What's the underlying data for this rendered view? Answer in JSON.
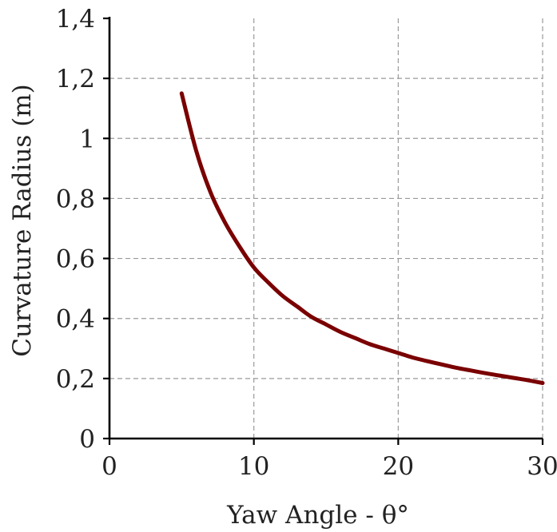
{
  "chart_data": {
    "type": "line",
    "xlabel": "Yaw Angle - θ°",
    "ylabel": "Curvature Radius (m)",
    "xlim": [
      0,
      30
    ],
    "ylim": [
      0,
      1.4
    ],
    "x_ticks": [
      0,
      10,
      20,
      30
    ],
    "x_tick_labels": [
      "0",
      "10",
      "20",
      "30"
    ],
    "y_ticks": [
      0,
      0.2,
      0.4,
      0.6,
      0.8,
      1.0,
      1.2,
      1.4
    ],
    "y_tick_labels": [
      "0",
      "0,2",
      "0,4",
      "0,6",
      "0,8",
      "1",
      "1,2",
      "1,4"
    ],
    "grid": true,
    "series": [
      {
        "color": "#7a0000",
        "x": [
          5,
          6,
          7,
          8,
          9,
          10,
          11,
          12,
          13,
          14,
          15,
          16,
          17,
          18,
          19,
          20,
          21,
          22,
          23,
          24,
          25,
          26,
          27,
          28,
          29,
          30
        ],
        "y": [
          1.15,
          0.96,
          0.82,
          0.72,
          0.64,
          0.57,
          0.52,
          0.475,
          0.44,
          0.405,
          0.38,
          0.355,
          0.335,
          0.315,
          0.3,
          0.285,
          0.27,
          0.258,
          0.247,
          0.236,
          0.227,
          0.218,
          0.21,
          0.202,
          0.194,
          0.185
        ]
      }
    ]
  }
}
